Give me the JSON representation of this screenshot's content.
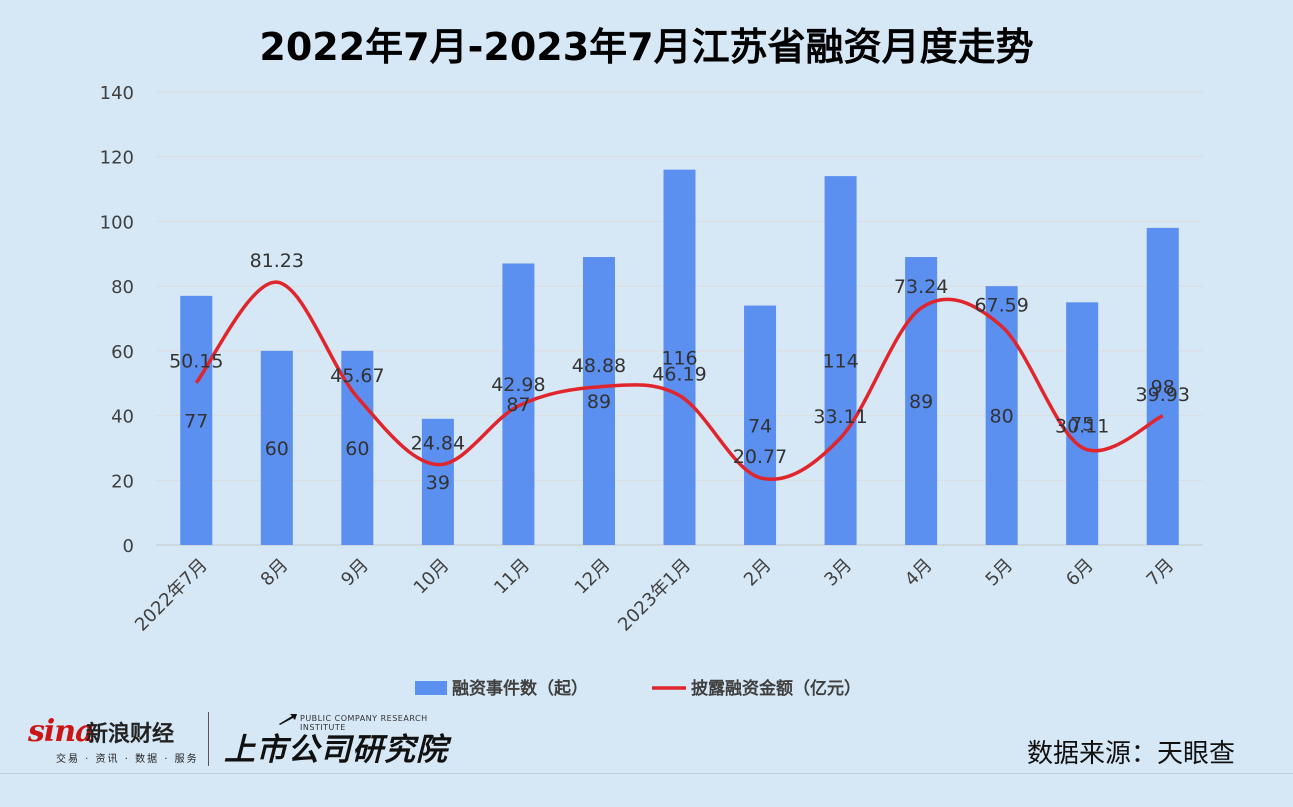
{
  "title": "2022年7月-2023年7月江苏省融资月度走势",
  "source": "数据来源：天眼查",
  "branding": {
    "sina_logo": "sina",
    "sina_name": "新浪财经",
    "sina_sub": "交易 · 资讯 · 数据 · 服务",
    "institute_en": "PUBLIC COMPANY RESEARCH INSTITUTE",
    "institute_cn": "上市公司研究院"
  },
  "chart_data": {
    "type": "bar",
    "title": "2022年7月-2023年7月江苏省融资月度走势",
    "categories": [
      "2022年7月",
      "8月",
      "9月",
      "10月",
      "11月",
      "12月",
      "2023年1月",
      "2月",
      "3月",
      "4月",
      "5月",
      "6月",
      "7月"
    ],
    "ylim": [
      0,
      140
    ],
    "yticks": [
      0,
      20,
      40,
      60,
      80,
      100,
      120,
      140
    ],
    "grid": true,
    "legend_position": "bottom",
    "series": [
      {
        "name": "融资事件数（起）",
        "type": "bar",
        "color": "#5b8ff0",
        "values": [
          77,
          60,
          60,
          39,
          87,
          89,
          116,
          74,
          114,
          89,
          80,
          75,
          98
        ]
      },
      {
        "name": "披露融资金额（亿元）",
        "type": "line",
        "smooth": true,
        "color": "#e0262c",
        "values": [
          50.15,
          81.23,
          45.67,
          24.84,
          42.98,
          48.88,
          46.19,
          20.77,
          33.11,
          73.24,
          67.59,
          30.11,
          39.93
        ]
      }
    ]
  }
}
